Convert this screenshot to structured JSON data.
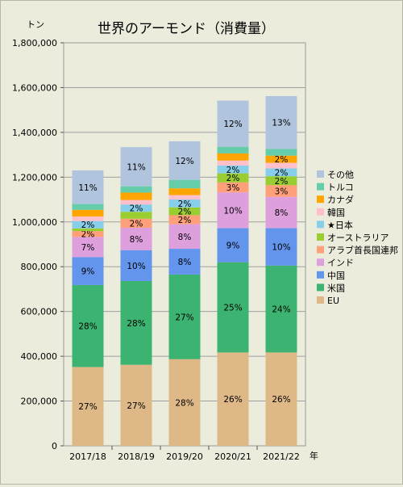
{
  "chart_data": {
    "type": "bar",
    "stacked": true,
    "title": "世界のアーモンド（消費量）",
    "ylabel": "トン",
    "xlabel": "年",
    "ylim": [
      0,
      1800000
    ],
    "yticks": [
      "0",
      "200,000",
      "400,000",
      "600,000",
      "800,000",
      "1,000,000",
      "1,200,000",
      "1,400,000",
      "1,600,000",
      "1,800,000"
    ],
    "ytick_values": [
      0,
      200000,
      400000,
      600000,
      800000,
      1000000,
      1200000,
      1400000,
      1600000,
      1800000
    ],
    "categories": [
      "2017/18",
      "2018/19",
      "2019/20",
      "2020/21",
      "2021/22"
    ],
    "grid": true,
    "legend_position": "right",
    "series": [
      {
        "name": "EU",
        "color": "#deb887",
        "values": [
          352000,
          362000,
          387000,
          417000,
          417000
        ],
        "labels": [
          "27%",
          "27%",
          "28%",
          "26%",
          "26%"
        ]
      },
      {
        "name": "米国",
        "color": "#3cb371",
        "values": [
          366000,
          374000,
          378000,
          403000,
          388000
        ],
        "labels": [
          "28%",
          "28%",
          "27%",
          "25%",
          "24%"
        ]
      },
      {
        "name": "中国",
        "color": "#6495ed",
        "values": [
          125000,
          138000,
          115000,
          152000,
          167000
        ],
        "labels": [
          "9%",
          "10%",
          "8%",
          "9%",
          "10%"
        ]
      },
      {
        "name": "インド",
        "color": "#dda0dd",
        "values": [
          90000,
          100000,
          110000,
          160000,
          140000
        ],
        "labels": [
          "7%",
          "8%",
          "8%",
          "10%",
          "8%"
        ]
      },
      {
        "name": "アラブ首長国連邦",
        "color": "#ffa07a",
        "values": [
          26000,
          40000,
          40000,
          45000,
          52000
        ],
        "labels": [
          "2%",
          "2%",
          "2%",
          "3%",
          "3%"
        ]
      },
      {
        "name": "オーストラリア",
        "color": "#9acd32",
        "values": [
          12000,
          31000,
          35000,
          40000,
          40000
        ],
        "labels": [
          "",
          "",
          "2%",
          "2%",
          "2%"
        ]
      },
      {
        "name": "★日本",
        "color": "#87ceeb",
        "values": [
          33000,
          33000,
          35000,
          35000,
          35000
        ],
        "labels": [
          "2%",
          "2%",
          "2%",
          "2%",
          "2%"
        ]
      },
      {
        "name": "韓国",
        "color": "#ffc0cb",
        "values": [
          20000,
          20000,
          20000,
          22000,
          25000
        ],
        "labels": [
          "",
          "",
          "",
          "",
          ""
        ]
      },
      {
        "name": "カナダ",
        "color": "#ffa500",
        "values": [
          30000,
          33000,
          30000,
          32000,
          32000
        ],
        "labels": [
          "",
          "",
          "",
          "",
          "2%"
        ]
      },
      {
        "name": "トルコ",
        "color": "#66cdaa",
        "values": [
          26000,
          28000,
          38000,
          30000,
          30000
        ],
        "labels": [
          "",
          "",
          "",
          "",
          ""
        ]
      },
      {
        "name": "その他",
        "color": "#b0c4de",
        "values": [
          150000,
          175000,
          172000,
          206000,
          236000
        ],
        "labels": [
          "11%",
          "11%",
          "12%",
          "12%",
          "13%"
        ]
      }
    ]
  }
}
